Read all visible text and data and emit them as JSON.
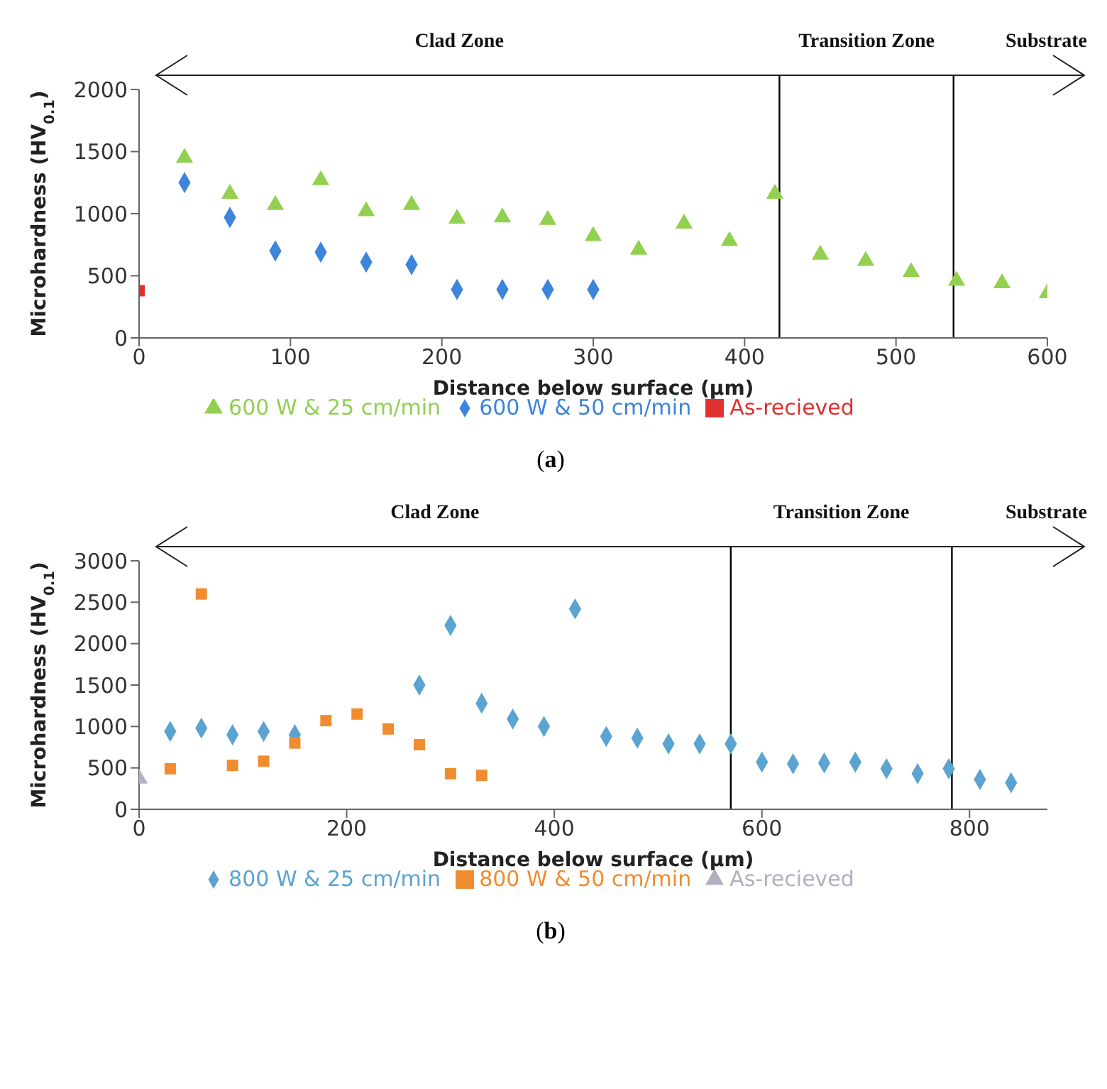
{
  "chart_data": [
    {
      "type": "scatter",
      "xlabel": "Distance below surface (µm)",
      "ylabel": "Microhardness (HV$_{0.1}$)",
      "xlim": [
        0,
        600
      ],
      "xticks": [
        0,
        100,
        200,
        300,
        400,
        500,
        600
      ],
      "ylim": [
        0,
        2000
      ],
      "yticks": [
        0,
        500,
        1000,
        1500,
        2000
      ],
      "grid": false,
      "legend": "bottom",
      "series": [
        {
          "name": "600 W & 25 cm/min",
          "color": "#92d050",
          "marker": "triangle",
          "x": [
            30,
            60,
            90,
            120,
            150,
            180,
            210,
            240,
            270,
            300,
            330,
            360,
            390,
            420,
            450,
            480,
            510,
            540,
            570,
            600
          ],
          "values": [
            1450,
            1160,
            1070,
            1270,
            1020,
            1070,
            960,
            970,
            950,
            820,
            710,
            920,
            780,
            1160,
            670,
            620,
            530,
            460,
            440,
            360
          ]
        },
        {
          "name": "600 W & 50 cm/min",
          "color": "#3c84dc",
          "marker": "diamond",
          "x": [
            30,
            60,
            90,
            120,
            150,
            180,
            210,
            240,
            270,
            300
          ],
          "values": [
            1250,
            970,
            700,
            690,
            610,
            590,
            390,
            390,
            390,
            390
          ]
        },
        {
          "name": "As-recieved",
          "color": "#e03030",
          "marker": "square",
          "x": [
            0
          ],
          "values": [
            380
          ]
        }
      ],
      "ref_lines": [
        {
          "axis": "x",
          "value": 423,
          "color": "#000000"
        },
        {
          "axis": "x",
          "value": 538,
          "color": "#000000"
        }
      ],
      "annotations": [
        "Clad Zone",
        "Transition Zone",
        "Substrate",
        "(a)"
      ]
    },
    {
      "type": "scatter",
      "xlabel": "Distance below surface (µm)",
      "ylabel": "Microhardness (HV$_{0.1}$)",
      "xlim": [
        0,
        875
      ],
      "xticks": [
        0,
        200,
        400,
        600,
        800
      ],
      "ylim": [
        0,
        3000
      ],
      "yticks": [
        0,
        500,
        1000,
        1500,
        2000,
        2500,
        3000
      ],
      "grid": false,
      "legend": "bottom",
      "series": [
        {
          "name": "800 W & 25 cm/min",
          "color": "#5ba3d0",
          "marker": "diamond",
          "x": [
            30,
            60,
            90,
            120,
            150,
            180,
            210,
            240,
            270,
            300,
            330,
            360,
            390,
            420,
            450,
            480,
            510,
            540,
            570,
            600,
            630,
            660,
            690,
            720,
            750,
            780,
            810,
            840
          ],
          "values": [
            940,
            980,
            900,
            940,
            900,
            null,
            null,
            null,
            1500,
            2220,
            1280,
            1090,
            1000,
            2420,
            880,
            860,
            790,
            790,
            790,
            570,
            550,
            560,
            570,
            490,
            430,
            490,
            360,
            320
          ]
        },
        {
          "name": "800 W & 50 cm/min",
          "color": "#f08c30",
          "marker": "square",
          "x": [
            30,
            60,
            90,
            120,
            150,
            180,
            210,
            240,
            270,
            300,
            330
          ],
          "values": [
            490,
            2600,
            530,
            580,
            800,
            1070,
            1150,
            970,
            780,
            430,
            410
          ]
        },
        {
          "name": "As-recieved",
          "color": "#b0b0c0",
          "marker": "triangle",
          "x": [
            0
          ],
          "values": [
            370
          ]
        }
      ],
      "ref_lines": [
        {
          "axis": "x",
          "value": 570,
          "color": "#000000"
        },
        {
          "axis": "x",
          "value": 783,
          "color": "#000000"
        }
      ],
      "annotations": [
        "Clad Zone",
        "Transition Zone",
        "Substrate",
        "(b)"
      ]
    }
  ]
}
